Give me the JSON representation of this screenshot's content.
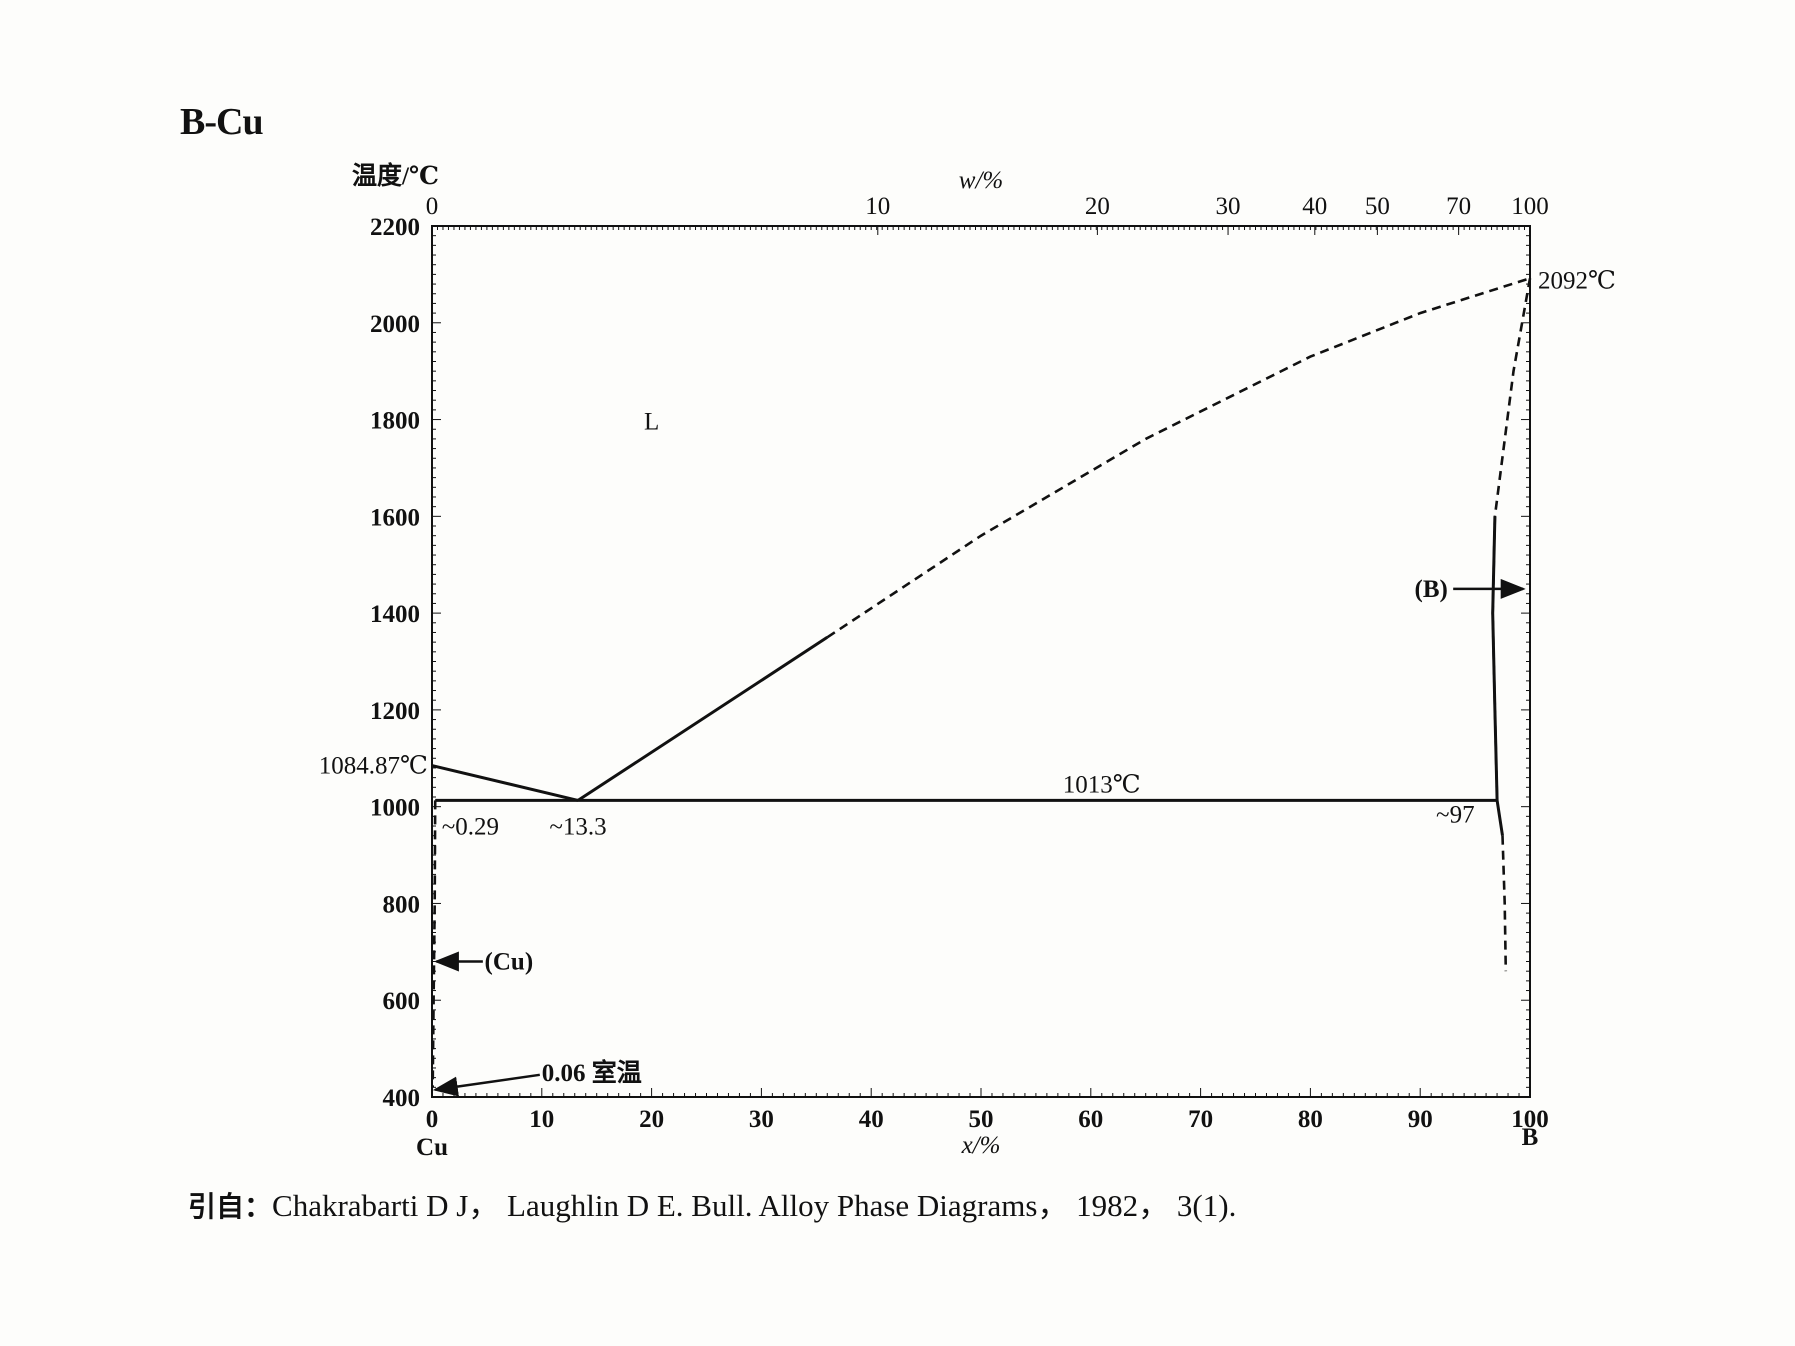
{
  "title": "B-Cu",
  "citation": {
    "label": "引自：",
    "text": "Chakrabarti D J， Laughlin D E. Bull. Alloy Phase Diagrams， 1982， 3(1)."
  },
  "chart_data": {
    "type": "line",
    "ylabel": "温度/℃",
    "xlabel": "x/%",
    "top_xlabel": "w/%",
    "ylim": [
      400,
      2200
    ],
    "xlim": [
      0,
      100
    ],
    "y_ticks": [
      "400",
      "600",
      "800",
      "1000",
      "1200",
      "1400",
      "1600",
      "1800",
      "2000",
      "2200"
    ],
    "x_ticks": [
      "0",
      "10",
      "20",
      "30",
      "40",
      "50",
      "60",
      "70",
      "80",
      "90",
      "100"
    ],
    "top_x_ticks": [
      {
        "label": "0",
        "x": 0
      },
      {
        "label": "10",
        "x": 40.6
      },
      {
        "label": "20",
        "x": 60.6
      },
      {
        "label": "30",
        "x": 72.5
      },
      {
        "label": "40",
        "x": 80.4
      },
      {
        "label": "50",
        "x": 86.1
      },
      {
        "label": "70",
        "x": 93.5
      },
      {
        "label": "100",
        "x": 100
      }
    ],
    "left_element": "Cu",
    "right_element": "B",
    "series": [
      {
        "line": "solid",
        "points": [
          [
            0,
            1084.87
          ],
          [
            13.3,
            1013
          ]
        ]
      },
      {
        "line": "solid",
        "points": [
          [
            13.3,
            1013
          ],
          [
            36,
            1350
          ]
        ]
      },
      {
        "line": "dashed",
        "points": [
          [
            36,
            1350
          ],
          [
            50,
            1560
          ],
          [
            65,
            1760
          ],
          [
            80,
            1930
          ],
          [
            90,
            2020
          ],
          [
            100,
            2092
          ]
        ]
      },
      {
        "line": "solid",
        "points": [
          [
            0.29,
            1013
          ],
          [
            97,
            1013
          ]
        ]
      },
      {
        "line": "dashed",
        "points": [
          [
            100,
            2092
          ],
          [
            98.5,
            1900
          ],
          [
            96.8,
            1600
          ],
          [
            96.6,
            1400
          ],
          [
            96.8,
            1200
          ],
          [
            97,
            1013
          ]
        ]
      },
      {
        "line": "solid",
        "points": [
          [
            96.8,
            1600
          ],
          [
            96.6,
            1400
          ],
          [
            96.8,
            1200
          ],
          [
            97,
            1013
          ],
          [
            97.5,
            940
          ]
        ]
      },
      {
        "line": "dashed",
        "points": [
          [
            97.5,
            940
          ],
          [
            97.7,
            800
          ],
          [
            97.8,
            660
          ]
        ]
      },
      {
        "line": "dashed",
        "points": [
          [
            0.29,
            1013
          ],
          [
            0.25,
            800
          ],
          [
            0.15,
            600
          ],
          [
            0.06,
            420
          ]
        ]
      }
    ],
    "annotations": [
      {
        "text": "2092℃",
        "x": 100,
        "y": 2092
      },
      {
        "text": "L",
        "x": 20,
        "y": 1800
      },
      {
        "text": "(B)",
        "x": 91,
        "y": 1450
      },
      {
        "text": "1084.87℃",
        "x": 0,
        "y": 1084.87
      },
      {
        "text": "1013℃",
        "x": 61,
        "y": 1013
      },
      {
        "text": "~0.29",
        "x": 3.5,
        "y": 1000
      },
      {
        "text": "~13.3",
        "x": 13.3,
        "y": 1000
      },
      {
        "text": "~97",
        "x": 95.5,
        "y": 1013
      },
      {
        "text": "(Cu)",
        "x": 7,
        "y": 680
      },
      {
        "text": "0.06 室温",
        "x": 10,
        "y": 450
      }
    ]
  }
}
